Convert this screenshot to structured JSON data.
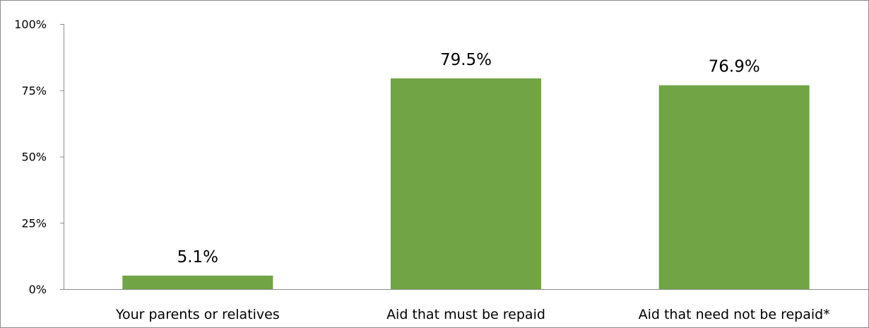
{
  "chart_data": {
    "type": "bar",
    "categories": [
      "Your parents or relatives",
      "Aid that must be repaid",
      "Aid that need not be repaid*"
    ],
    "values": [
      5.1,
      79.5,
      76.9
    ],
    "data_labels": [
      "5.1%",
      "79.5%",
      "76.9%"
    ],
    "yticks": [
      0,
      25,
      50,
      75,
      100
    ],
    "ytick_labels": [
      "0%",
      "25%",
      "50%",
      "75%",
      "100%"
    ],
    "ylim": [
      0,
      100
    ],
    "title": "",
    "xlabel": "",
    "ylabel": "",
    "grid": false,
    "legend": "none",
    "bar_color": "#70a444",
    "axis_color": "#8c8c8c"
  }
}
